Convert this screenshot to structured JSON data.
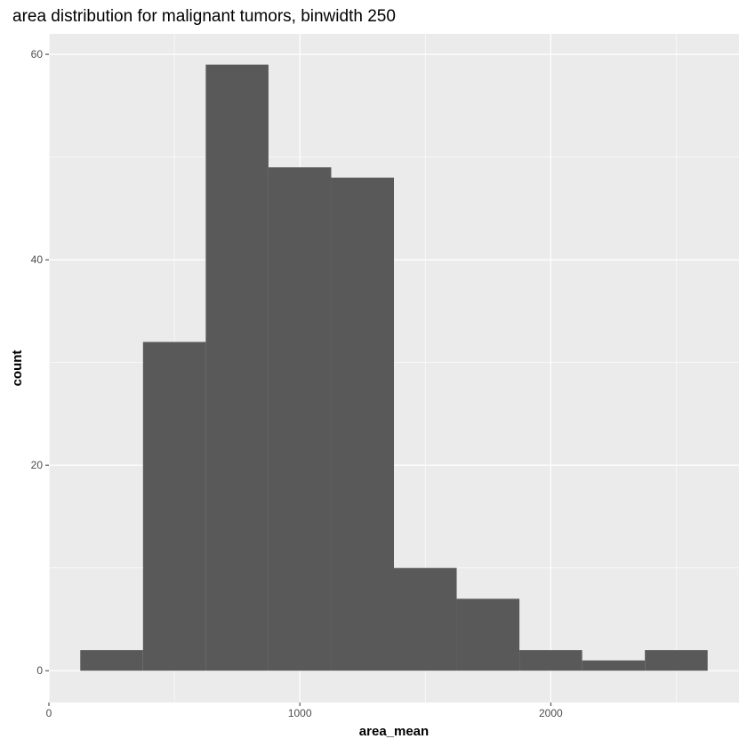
{
  "chart_data": {
    "type": "bar",
    "title": "area distribution for malignant tumors, binwidth 250",
    "xlabel": "area_mean",
    "ylabel": "count",
    "binwidth": 250,
    "bins": [
      {
        "x_start": 125,
        "x_end": 375,
        "count": 2
      },
      {
        "x_start": 375,
        "x_end": 625,
        "count": 32
      },
      {
        "x_start": 625,
        "x_end": 875,
        "count": 59
      },
      {
        "x_start": 875,
        "x_end": 1125,
        "count": 49
      },
      {
        "x_start": 1125,
        "x_end": 1375,
        "count": 48
      },
      {
        "x_start": 1375,
        "x_end": 1625,
        "count": 10
      },
      {
        "x_start": 1625,
        "x_end": 1875,
        "count": 7
      },
      {
        "x_start": 1875,
        "x_end": 2125,
        "count": 2
      },
      {
        "x_start": 2125,
        "x_end": 2375,
        "count": 1
      },
      {
        "x_start": 2375,
        "x_end": 2625,
        "count": 2
      }
    ],
    "x_ticks": [
      0,
      1000,
      2000
    ],
    "x_minor_ticks": [
      500,
      1500,
      2500
    ],
    "y_ticks": [
      0,
      20,
      40,
      60
    ],
    "y_minor_ticks": [
      10,
      30,
      50
    ],
    "xlim": [
      0,
      2750
    ],
    "ylim": [
      -3.1,
      62
    ],
    "colors": {
      "bar_fill": "#595959",
      "panel_background": "#ebebeb",
      "grid": "#ffffff",
      "tick_text": "#4d4d4d"
    },
    "grid": true
  }
}
